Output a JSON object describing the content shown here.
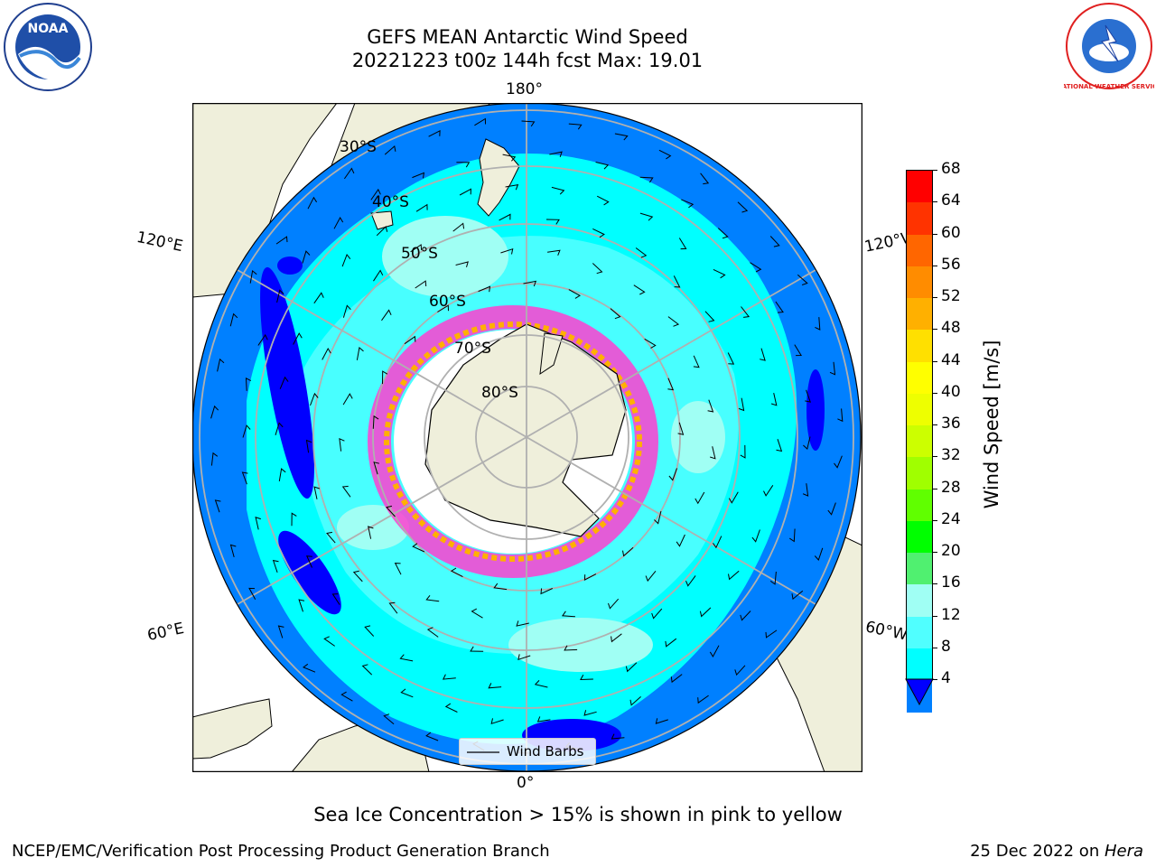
{
  "title_line1": "GEFS MEAN Antarctic Wind Speed",
  "title_line2": "20221223 t00z 144h fcst   Max: 19.01",
  "lon_labels": {
    "top": "180°",
    "bottom": "0°",
    "left_upper": "120°E",
    "left_lower": "60°E",
    "right_upper": "120°W",
    "right_lower": "60°W"
  },
  "lat_labels": [
    "30°S",
    "40°S",
    "50°S",
    "60°S",
    "70°S",
    "80°S"
  ],
  "legend_label": "Wind Barbs",
  "colorbar": {
    "label": "Wind Speed [m/s]",
    "ticks": [
      "68",
      "64",
      "60",
      "56",
      "52",
      "48",
      "44",
      "40",
      "36",
      "32",
      "28",
      "24",
      "20",
      "16",
      "12",
      "8",
      "4"
    ],
    "colors": [
      "#ff0000",
      "#ff3300",
      "#ff6600",
      "#ff8c00",
      "#ffb000",
      "#ffe000",
      "#ffff00",
      "#eeff00",
      "#ccff00",
      "#a0ff00",
      "#60ff00",
      "#00ff00",
      "#50f070",
      "#a0fff4",
      "#50ffff",
      "#00ffff",
      "#0080ff"
    ],
    "under_color": "#0000ff"
  },
  "caption": "Sea Ice Concentration > 15% is shown in pink to yellow",
  "footer_left": "NCEP/EMC/Verification Post Processing Product Generation Branch",
  "footer_right_date": "25 Dec 2022 on ",
  "footer_right_host": "Hera",
  "logos": {
    "left": "NOAA",
    "right": "NATIONAL WEATHER SERVICE"
  }
}
